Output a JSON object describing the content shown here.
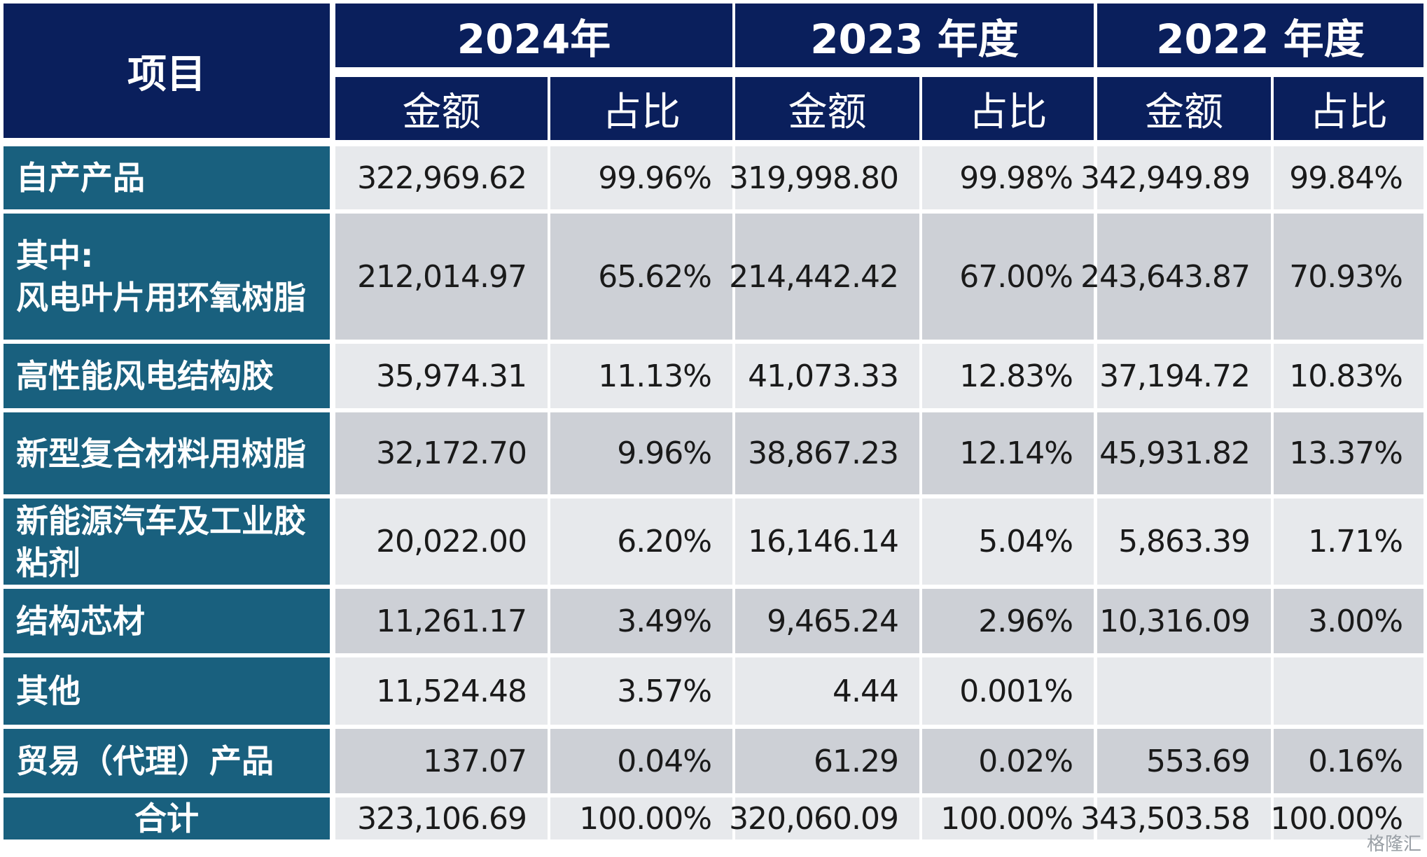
{
  "header": {
    "project_label": "项目",
    "years": [
      "2024年",
      "2023 年度",
      "2022 年度"
    ],
    "amount_label": "金额",
    "ratio_label": "占比"
  },
  "rows": [
    {
      "label": "自产产品",
      "values": [
        "322,969.62",
        "99.96%",
        "319,998.80",
        "99.98%",
        "342,949.89",
        "99.84%"
      ]
    },
    {
      "label": "其中:\n风电叶片用环氧树脂",
      "values": [
        "212,014.97",
        "65.62%",
        "214,442.42",
        "67.00%",
        "243,643.87",
        "70.93%"
      ]
    },
    {
      "label": "高性能风电结构胶",
      "values": [
        "35,974.31",
        "11.13%",
        "41,073.33",
        "12.83%",
        "37,194.72",
        "10.83%"
      ]
    },
    {
      "label": "新型复合材料用树脂",
      "values": [
        "32,172.70",
        "9.96%",
        "38,867.23",
        "12.14%",
        "45,931.82",
        "13.37%"
      ]
    },
    {
      "label": "新能源汽车及工业胶\n粘剂",
      "values": [
        "20,022.00",
        "6.20%",
        "16,146.14",
        "5.04%",
        "5,863.39",
        "1.71%"
      ]
    },
    {
      "label": "结构芯材",
      "values": [
        "11,261.17",
        "3.49%",
        "9,465.24",
        "2.96%",
        "10,316.09",
        "3.00%"
      ]
    },
    {
      "label": "其他",
      "values": [
        "11,524.48",
        "3.57%",
        "4.44",
        "0.001%",
        "",
        ""
      ]
    },
    {
      "label": "贸易（代理）产品",
      "values": [
        "137.07",
        "0.04%",
        "61.29",
        "0.02%",
        "553.69",
        "0.16%"
      ]
    },
    {
      "label": "合计",
      "values": [
        "323,106.69",
        "100.00%",
        "320,060.09",
        "100.00%",
        "343,503.58",
        "100.00%"
      ]
    }
  ],
  "watermark": "格隆汇"
}
